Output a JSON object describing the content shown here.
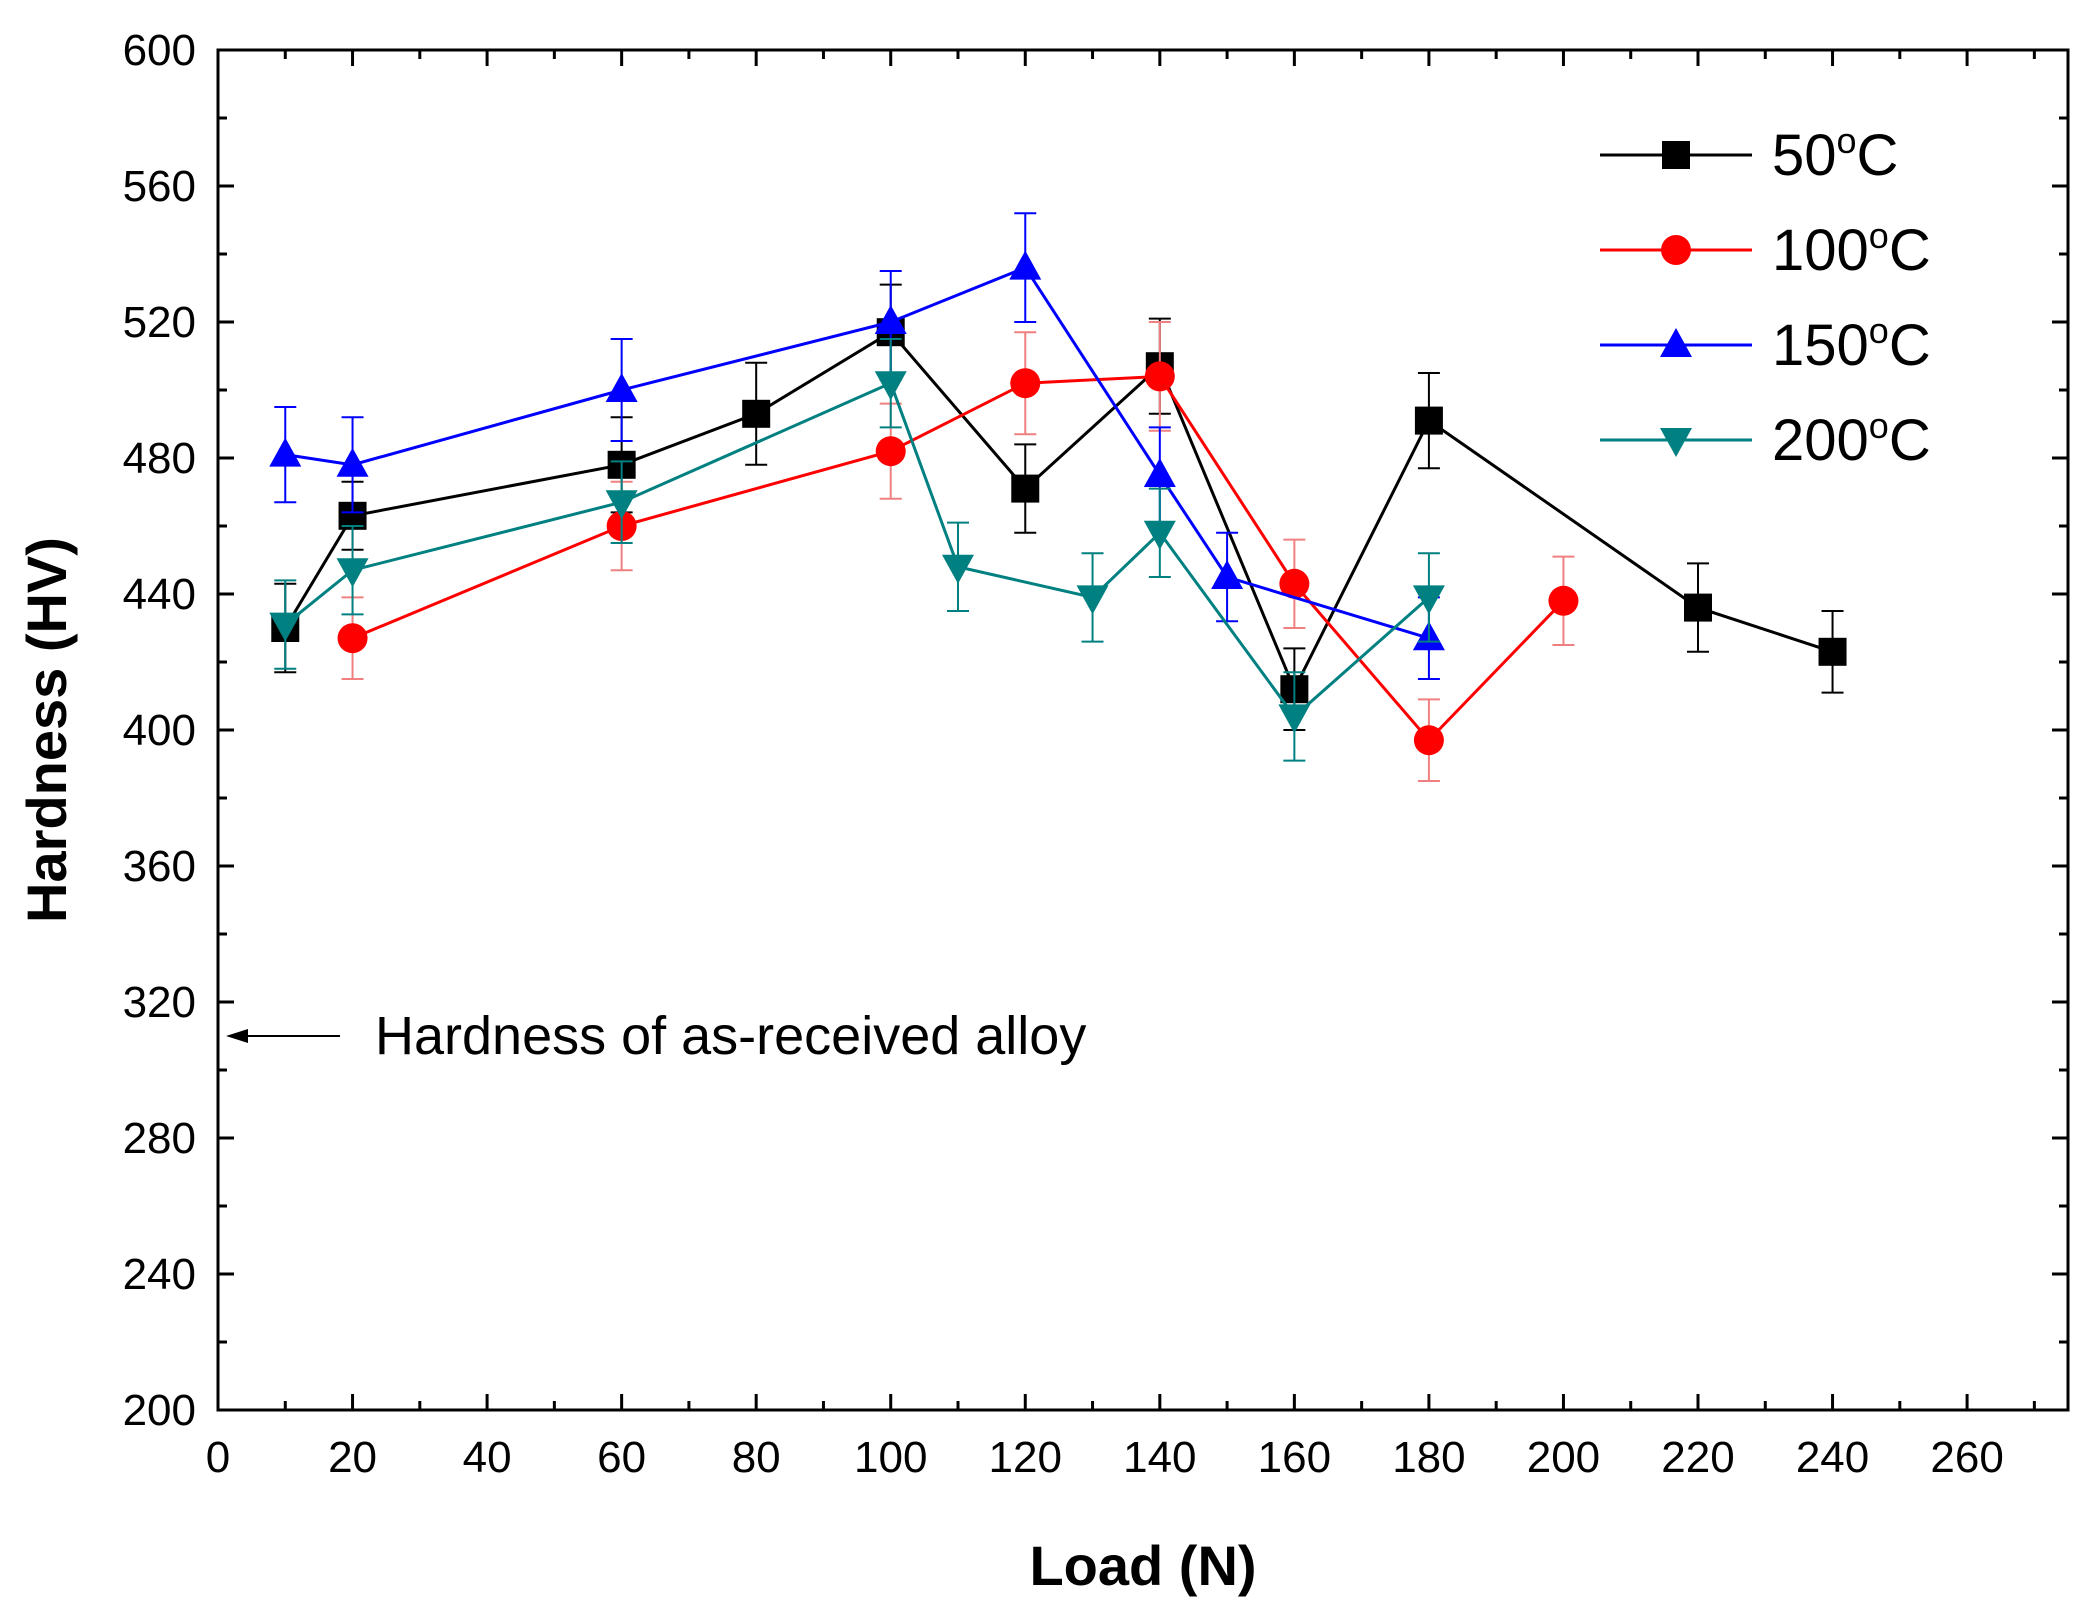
{
  "chart_data": {
    "type": "line",
    "title": "",
    "xlabel": "Load (N)",
    "ylabel": "Hardness (HV)",
    "xlim": [
      0,
      275
    ],
    "ylim": [
      200,
      600
    ],
    "xticks": [
      0,
      20,
      40,
      60,
      80,
      100,
      120,
      140,
      160,
      180,
      200,
      220,
      240,
      260
    ],
    "yticks": [
      200,
      240,
      280,
      320,
      360,
      400,
      440,
      480,
      520,
      560,
      600
    ],
    "grid": false,
    "legend_position": "top-right",
    "series": [
      {
        "name": "50",
        "unit_sup": "o",
        "unit": "C",
        "color": "#000000",
        "marker": "square",
        "x": [
          10,
          20,
          60,
          80,
          100,
          120,
          140,
          160,
          180,
          220,
          240
        ],
        "y": [
          430,
          463,
          478,
          493,
          517,
          471,
          507,
          412,
          491,
          436,
          423
        ],
        "err": [
          13,
          10,
          14,
          15,
          14,
          13,
          14,
          12,
          14,
          13,
          12
        ]
      },
      {
        "name": "100",
        "unit_sup": "o",
        "unit": "C",
        "color": "#ff0000",
        "marker": "circle",
        "x": [
          20,
          60,
          100,
          120,
          140,
          160,
          180,
          200
        ],
        "y": [
          427,
          460,
          482,
          502,
          504,
          443,
          397,
          438
        ],
        "err": [
          12,
          13,
          14,
          15,
          16,
          13,
          12,
          13
        ]
      },
      {
        "name": "150",
        "unit_sup": "o",
        "unit": "C",
        "color": "#0000ff",
        "marker": "triangle-up",
        "x": [
          10,
          20,
          60,
          100,
          120,
          140,
          150,
          180
        ],
        "y": [
          481,
          478,
          500,
          520,
          536,
          475,
          445,
          427
        ],
        "err": [
          14,
          14,
          15,
          15,
          16,
          14,
          13,
          12
        ]
      },
      {
        "name": "200",
        "unit_sup": "o",
        "unit": "C",
        "color": "#008080",
        "marker": "triangle-down",
        "x": [
          10,
          20,
          60,
          100,
          110,
          130,
          140,
          160,
          180
        ],
        "y": [
          431,
          447,
          467,
          502,
          448,
          439,
          458,
          404,
          439
        ],
        "err": [
          13,
          13,
          12,
          13,
          13,
          13,
          13,
          13,
          13
        ]
      }
    ],
    "annotations": [
      {
        "text": "Hardness of as-received alloy",
        "y": 310
      }
    ]
  }
}
